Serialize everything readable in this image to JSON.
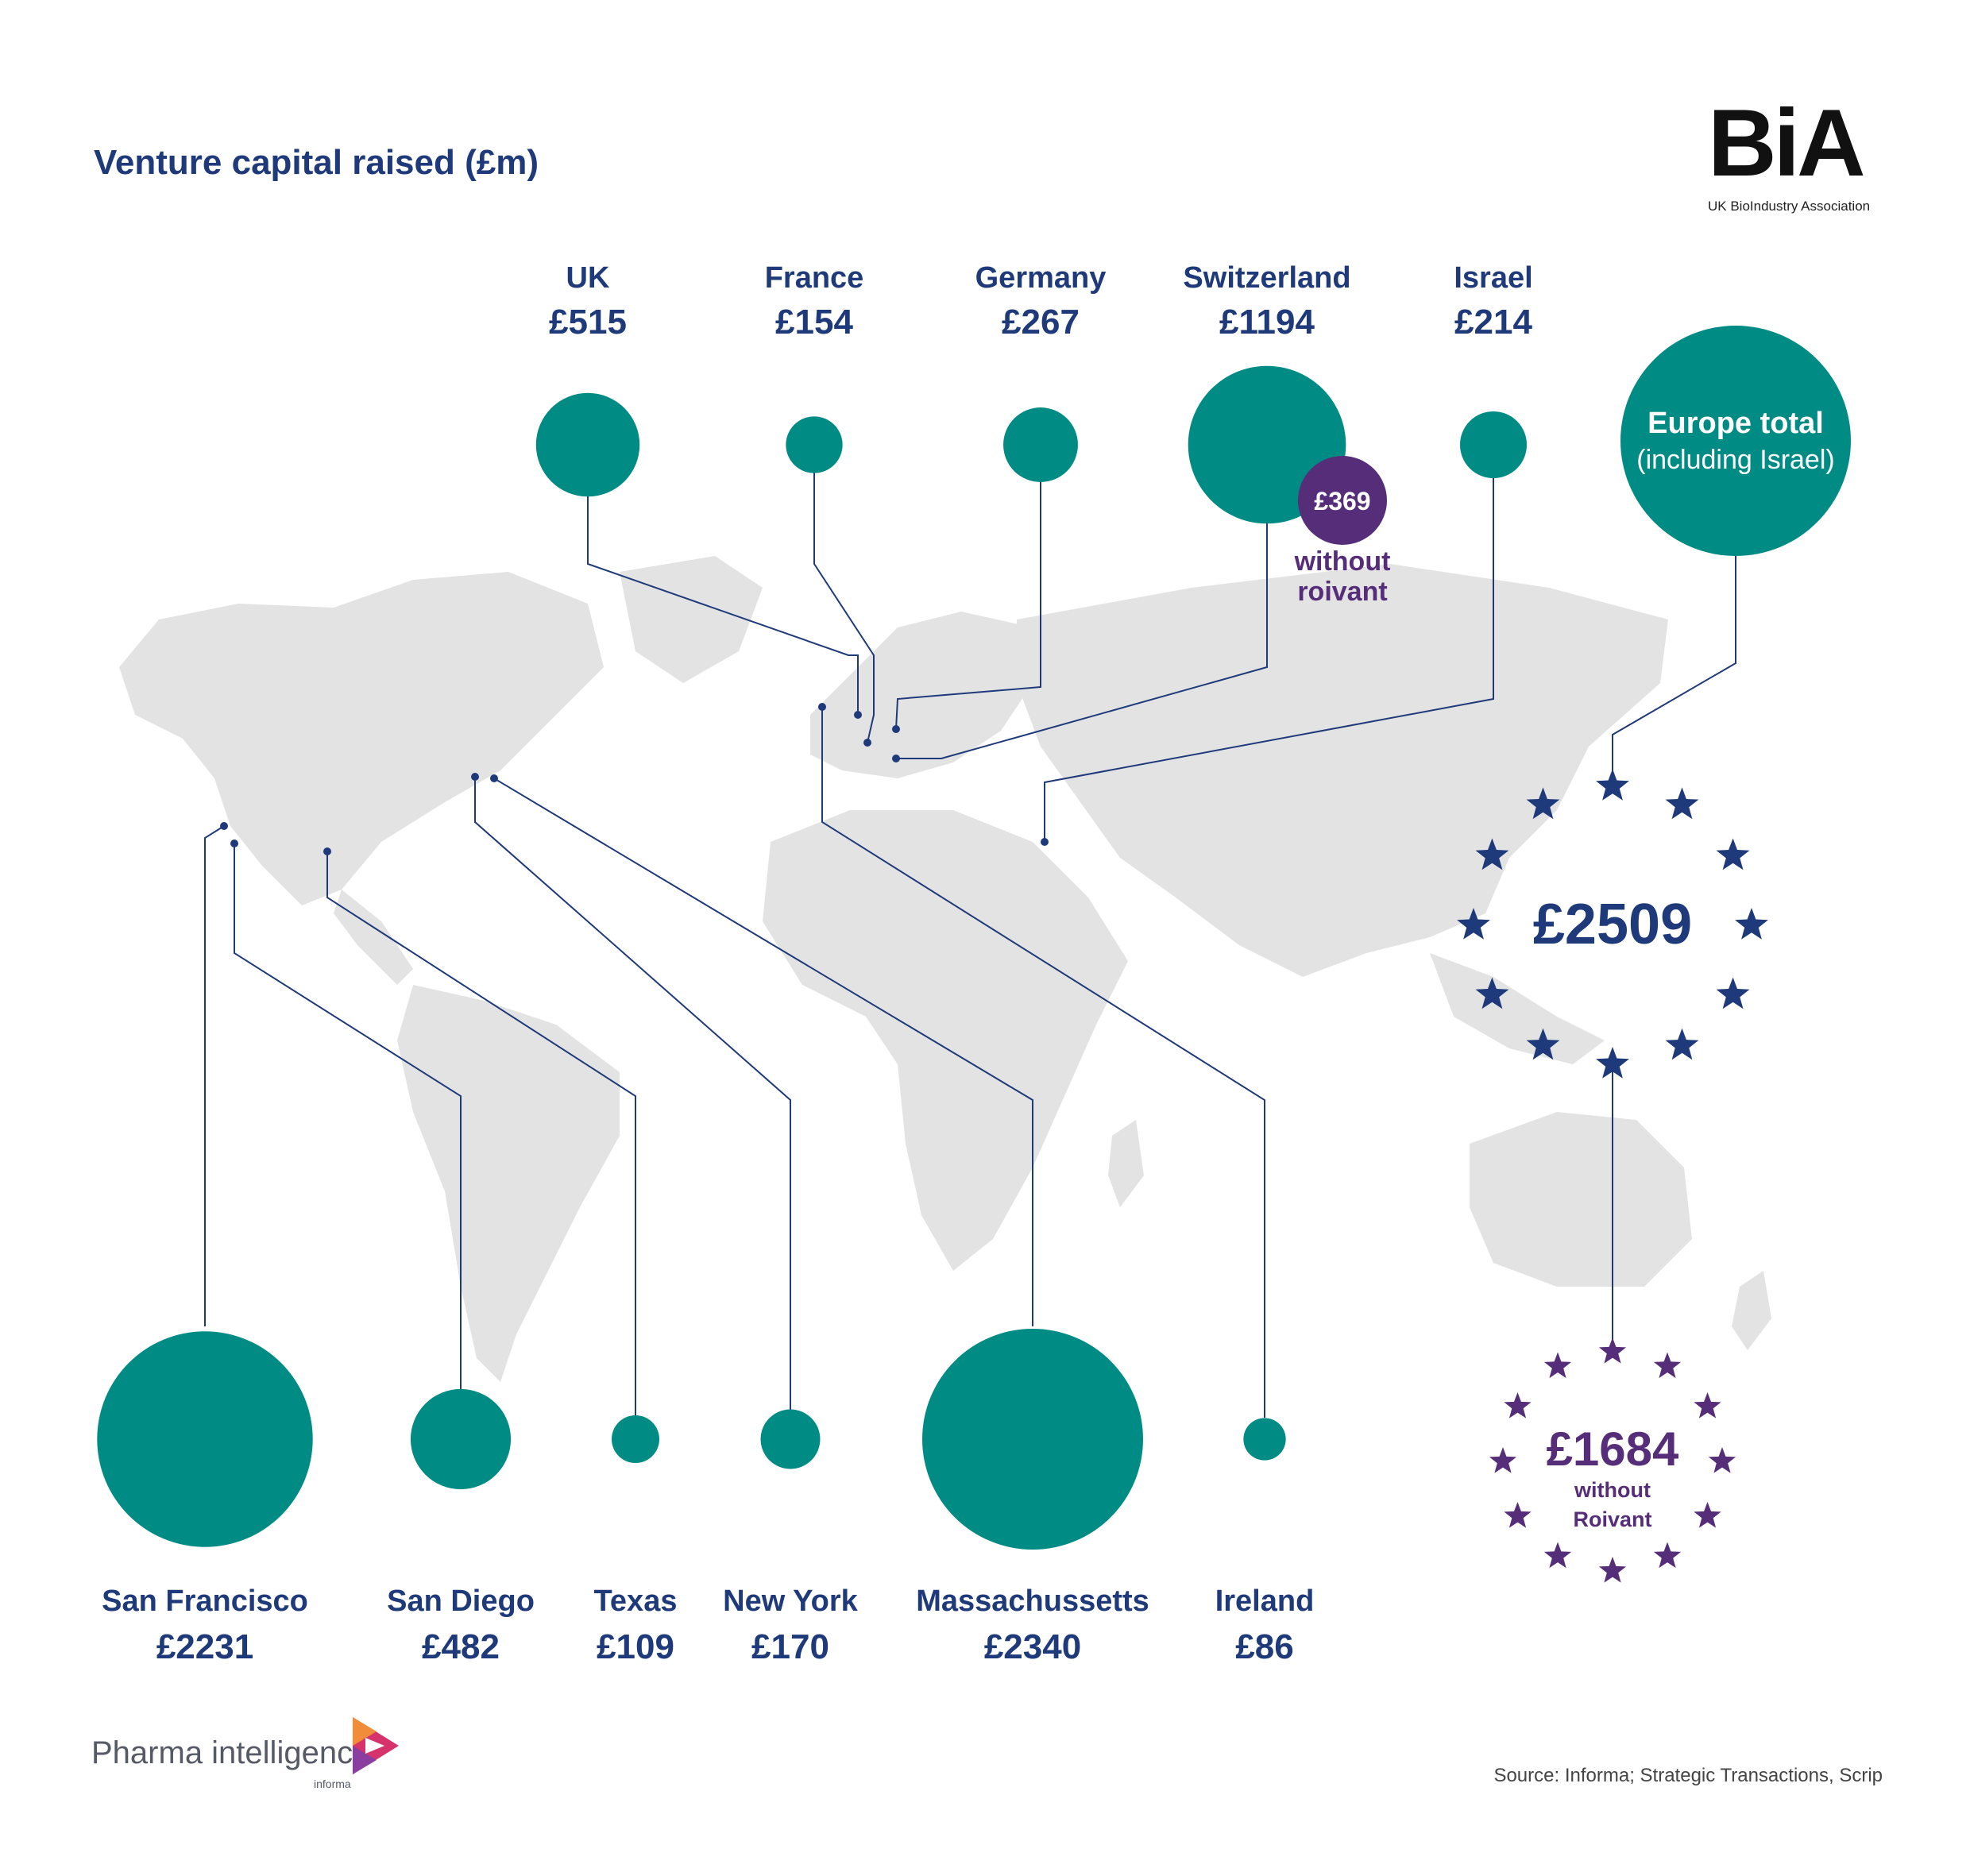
{
  "title": "Venture capital raised (£m)",
  "logo": {
    "word": "BiA",
    "subtitle": "UK BioIndustry Association"
  },
  "footer": {
    "brand": "Pharma intelligence",
    "brand_sub": "informa",
    "source": "Source: Informa; Strategic Transactions, Scrip"
  },
  "colors": {
    "bubble": "#008b84",
    "line": "#1f3a7a",
    "label": "#1f3a7a",
    "purple": "#552d79",
    "map": "#e3e3e3"
  },
  "chart_data": {
    "type": "bubble-map",
    "units": "£m",
    "europe": [
      {
        "name": "UK",
        "value": "£515",
        "amount": 515
      },
      {
        "name": "France",
        "value": "£154",
        "amount": 154
      },
      {
        "name": "Germany",
        "value": "£267",
        "amount": 267
      },
      {
        "name": "Switzerland",
        "value": "£1194",
        "amount": 1194,
        "alt_value": "£369",
        "alt_amount": 369,
        "alt_note_1": "without",
        "alt_note_2": "roivant"
      },
      {
        "name": "Israel",
        "value": "£214",
        "amount": 214
      }
    ],
    "europe_total": {
      "label": "Europe total",
      "sublabel": "(including Israel)",
      "value": "£2509",
      "amount": 2509,
      "without_value": "£1684",
      "without_amount": 1684,
      "without_note_1": "without",
      "without_note_2": "Roivant"
    },
    "usa_ireland": [
      {
        "name": "San Francisco",
        "value": "£2231",
        "amount": 2231
      },
      {
        "name": "San Diego",
        "value": "£482",
        "amount": 482
      },
      {
        "name": "Texas",
        "value": "£109",
        "amount": 109
      },
      {
        "name": "New York",
        "value": "£170",
        "amount": 170
      },
      {
        "name": "Massachussetts",
        "value": "£2340",
        "amount": 2340
      },
      {
        "name": "Ireland",
        "value": "£86",
        "amount": 86
      }
    ]
  }
}
